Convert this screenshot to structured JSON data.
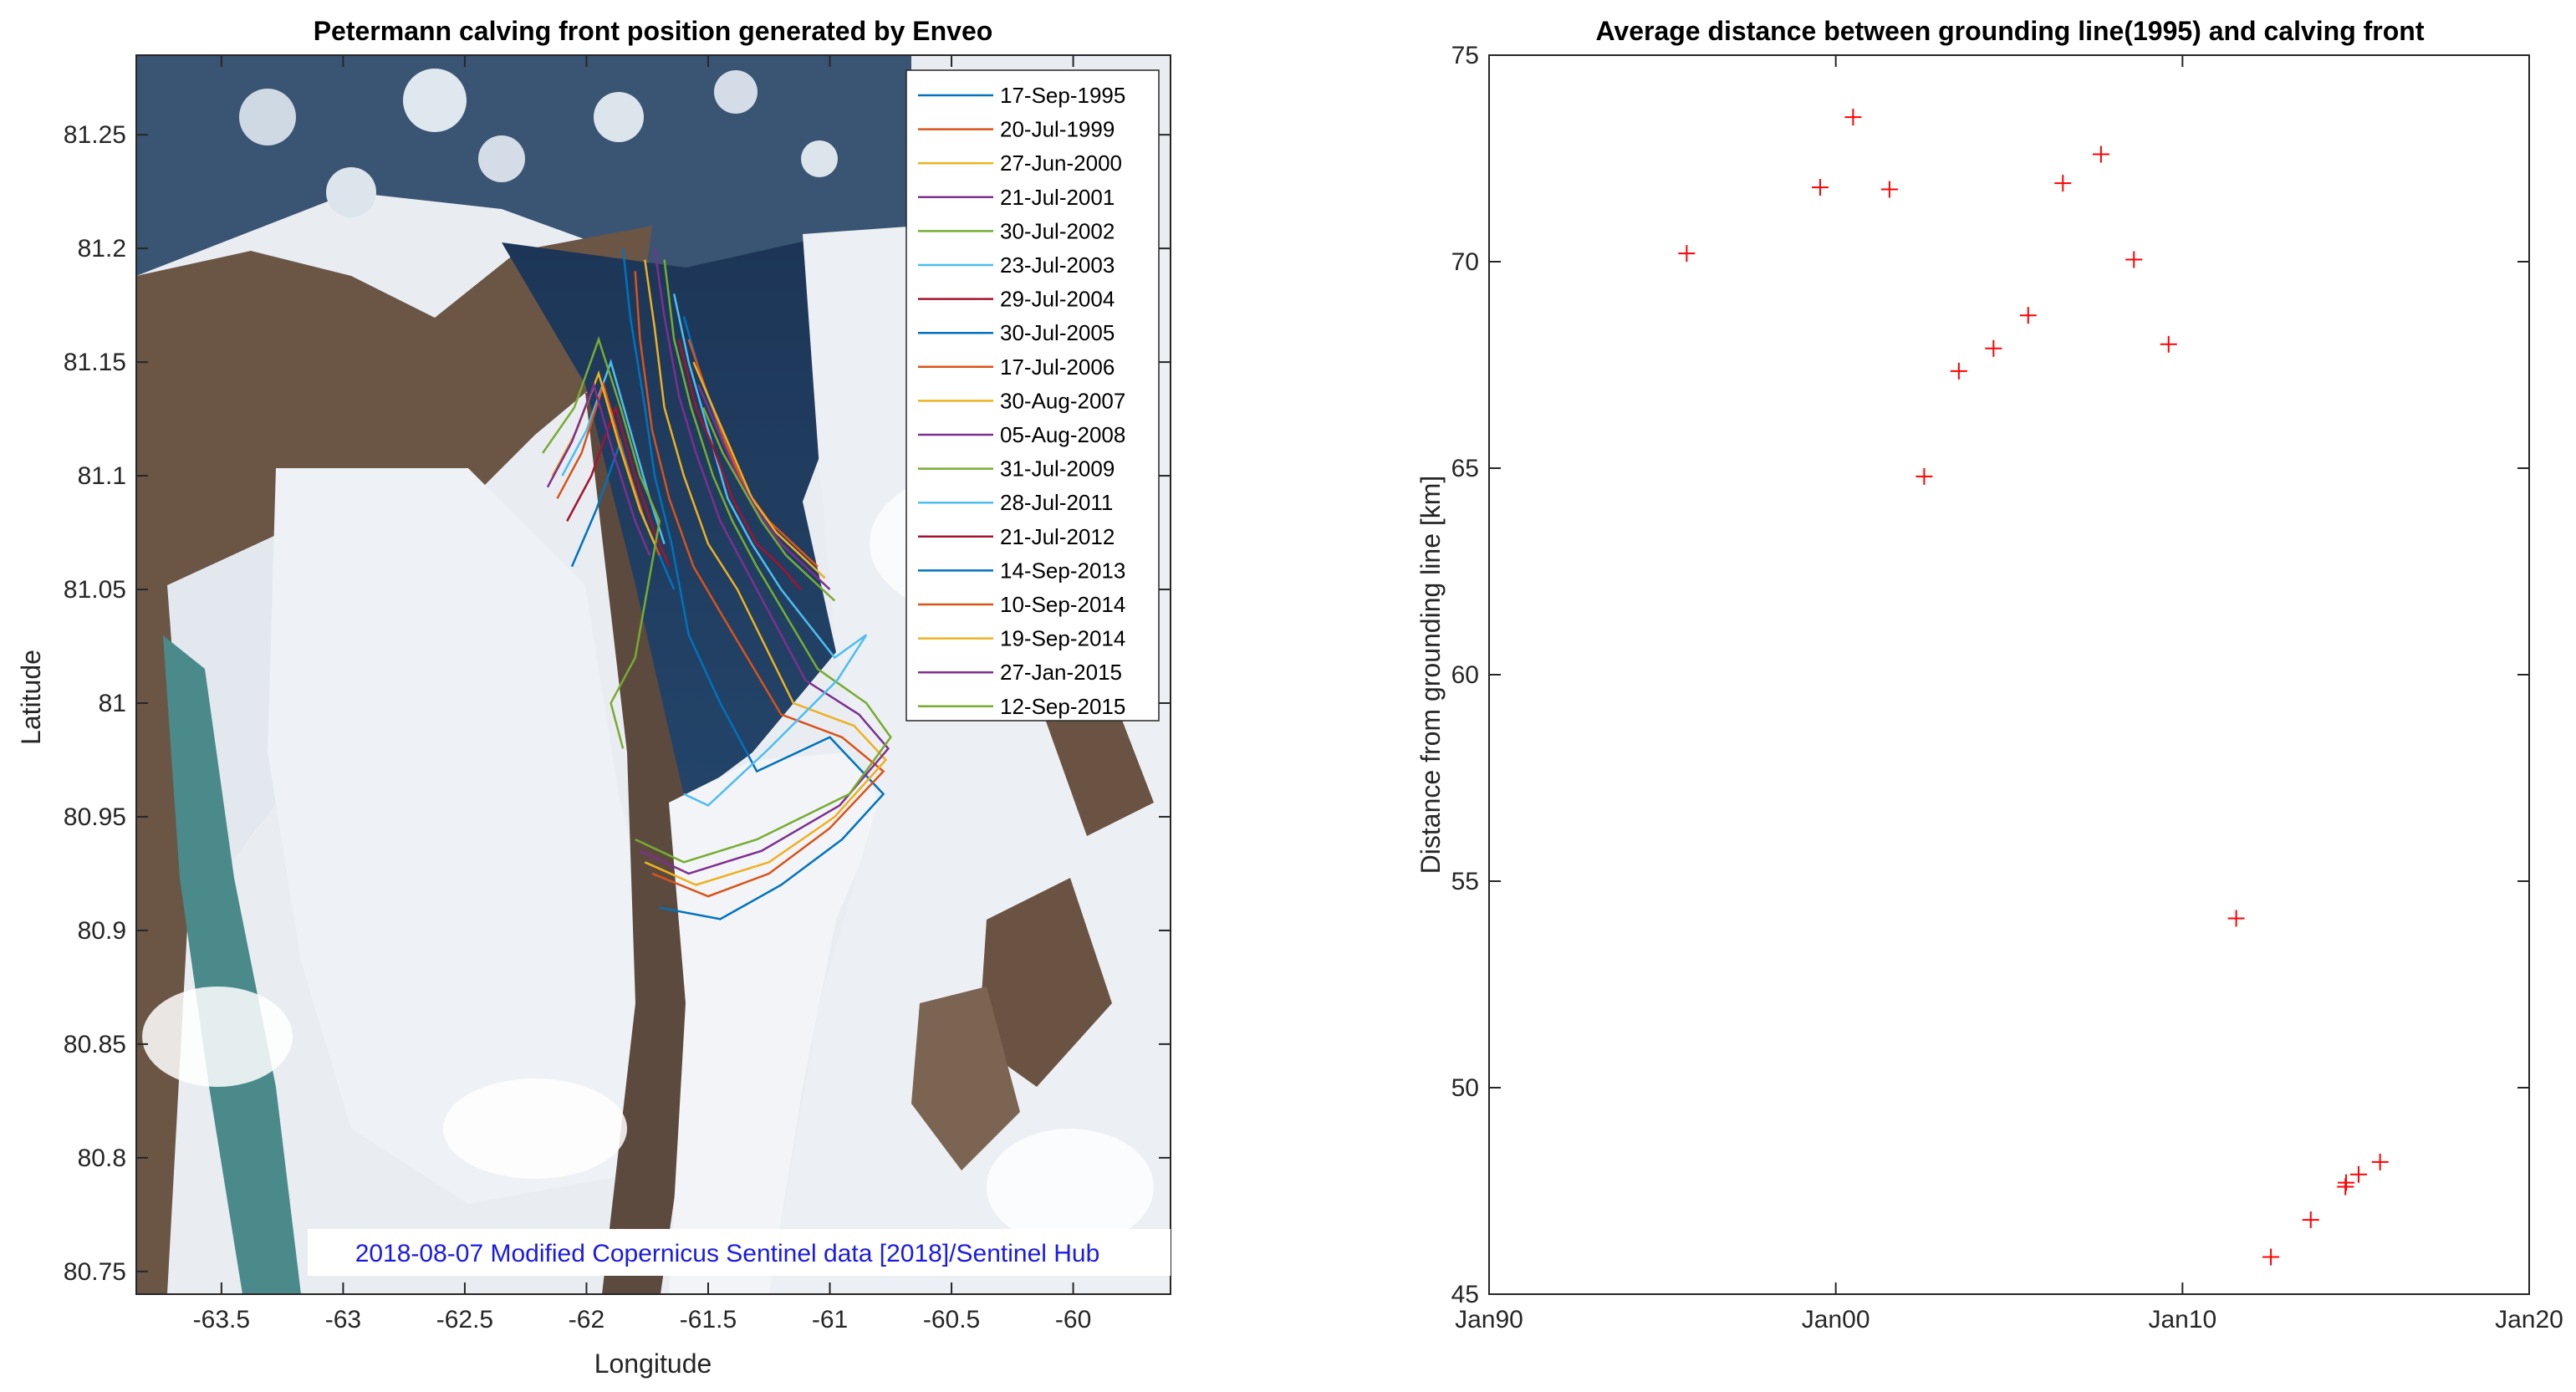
{
  "chart_data": [
    {
      "type": "line",
      "title": "Petermann calving front position generated by Enveo",
      "xlabel": "Longitude",
      "ylabel": "Latitude",
      "xlim": [
        -63.85,
        -59.6
      ],
      "ylim": [
        80.74,
        81.285
      ],
      "xticks": [
        -63.5,
        -63,
        -62.5,
        -62,
        -61.5,
        -61,
        -60.5,
        -60
      ],
      "xtick_labels": [
        "-63.5",
        "-63",
        "-62.5",
        "-62",
        "-61.5",
        "-61",
        "-60.5",
        "-60"
      ],
      "yticks": [
        80.75,
        80.8,
        80.85,
        80.9,
        80.95,
        81,
        81.05,
        81.1,
        81.15,
        81.2,
        81.25
      ],
      "ytick_labels": [
        "80.75",
        "80.8",
        "80.85",
        "80.9",
        "80.95",
        "81",
        "81.05",
        "81.1",
        "81.15",
        "81.2",
        "81.25"
      ],
      "legend_position": "top-right",
      "background": "satellite image",
      "credit": "2018-08-07 Modified Copernicus Sentinel data [2018]/Sentinel Hub",
      "credit_color": "#1a1ae6",
      "series": [
        {
          "name": "17-Sep-1995",
          "color": "#0072bd",
          "points": [
            [
              -61.85,
              81.2
            ],
            [
              -61.82,
              81.17
            ],
            [
              -61.76,
              81.13
            ],
            [
              -61.72,
              81.1
            ],
            [
              -61.65,
              81.07
            ],
            [
              -61.58,
              81.03
            ],
            [
              -61.45,
              81.0
            ],
            [
              -61.3,
              80.97
            ],
            [
              -61.0,
              80.985
            ],
            [
              -60.78,
              80.96
            ],
            [
              -60.95,
              80.94
            ],
            [
              -61.2,
              80.92
            ],
            [
              -61.45,
              80.905
            ],
            [
              -61.7,
              80.91
            ]
          ]
        },
        {
          "name": "20-Jul-1999",
          "color": "#d95319",
          "points": [
            [
              -61.8,
              81.19
            ],
            [
              -61.78,
              81.16
            ],
            [
              -61.73,
              81.12
            ],
            [
              -61.66,
              81.09
            ],
            [
              -61.56,
              81.06
            ],
            [
              -61.45,
              81.04
            ],
            [
              -61.2,
              80.995
            ],
            [
              -60.95,
              80.985
            ],
            [
              -60.78,
              80.97
            ],
            [
              -61.0,
              80.945
            ],
            [
              -61.25,
              80.925
            ],
            [
              -61.5,
              80.915
            ],
            [
              -61.73,
              80.925
            ]
          ]
        },
        {
          "name": "27-Jun-2000",
          "color": "#edb120",
          "points": [
            [
              -61.76,
              81.195
            ],
            [
              -61.72,
              81.165
            ],
            [
              -61.68,
              81.13
            ],
            [
              -61.6,
              81.1
            ],
            [
              -61.5,
              81.07
            ],
            [
              -61.38,
              81.05
            ],
            [
              -61.15,
              81.0
            ],
            [
              -60.9,
              80.99
            ],
            [
              -60.77,
              80.975
            ],
            [
              -60.98,
              80.95
            ],
            [
              -61.25,
              80.93
            ],
            [
              -61.55,
              80.92
            ],
            [
              -61.76,
              80.93
            ]
          ]
        },
        {
          "name": "21-Jul-2001",
          "color": "#7e2f8e",
          "points": [
            [
              -61.72,
              81.2
            ],
            [
              -61.68,
              81.17
            ],
            [
              -61.62,
              81.135
            ],
            [
              -61.55,
              81.11
            ],
            [
              -61.45,
              81.08
            ],
            [
              -61.35,
              81.06
            ],
            [
              -61.1,
              81.01
            ],
            [
              -60.88,
              80.995
            ],
            [
              -60.76,
              80.98
            ],
            [
              -60.96,
              80.955
            ],
            [
              -61.28,
              80.935
            ],
            [
              -61.58,
              80.925
            ],
            [
              -61.78,
              80.935
            ]
          ]
        },
        {
          "name": "30-Jul-2002",
          "color": "#77ac30",
          "points": [
            [
              -61.68,
              81.195
            ],
            [
              -61.64,
              81.16
            ],
            [
              -61.57,
              81.13
            ],
            [
              -61.48,
              81.1
            ],
            [
              -61.4,
              81.08
            ],
            [
              -61.3,
              81.06
            ],
            [
              -61.05,
              81.015
            ],
            [
              -60.85,
              81.0
            ],
            [
              -60.75,
              80.985
            ],
            [
              -60.92,
              80.96
            ],
            [
              -61.3,
              80.94
            ],
            [
              -61.6,
              80.93
            ],
            [
              -61.8,
              80.94
            ]
          ]
        },
        {
          "name": "23-Jul-2003",
          "color": "#4dbeee",
          "points": [
            [
              -61.64,
              81.18
            ],
            [
              -61.58,
              81.15
            ],
            [
              -61.5,
              81.12
            ],
            [
              -61.42,
              81.09
            ],
            [
              -61.32,
              81.07
            ],
            [
              -61.2,
              81.05
            ],
            [
              -60.98,
              81.02
            ],
            [
              -60.85,
              81.03
            ],
            [
              -60.97,
              81.01
            ],
            [
              -61.25,
              80.98
            ],
            [
              -61.5,
              80.955
            ],
            [
              -61.6,
              80.96
            ]
          ]
        },
        {
          "name": "29-Jul-2004",
          "color": "#a2142f",
          "points": [
            [
              -61.62,
              81.16
            ],
            [
              -61.55,
              81.13
            ],
            [
              -61.47,
              81.11
            ],
            [
              -61.4,
              81.09
            ],
            [
              -61.3,
              81.07
            ],
            [
              -61.2,
              81.06
            ],
            [
              -61.12,
              81.05
            ]
          ]
        },
        {
          "name": "30-Jul-2005",
          "color": "#0072bd",
          "points": [
            [
              -61.6,
              81.17
            ],
            [
              -61.52,
              81.14
            ],
            [
              -61.45,
              81.12
            ],
            [
              -61.38,
              81.1
            ],
            [
              -61.28,
              81.08
            ],
            [
              -61.18,
              81.065
            ],
            [
              -61.08,
              81.055
            ]
          ]
        },
        {
          "name": "17-Jul-2006",
          "color": "#d95319",
          "points": [
            [
              -61.58,
              81.16
            ],
            [
              -61.5,
              81.135
            ],
            [
              -61.43,
              81.115
            ],
            [
              -61.35,
              81.095
            ],
            [
              -61.25,
              81.08
            ],
            [
              -61.15,
              81.07
            ],
            [
              -61.05,
              81.06
            ]
          ]
        },
        {
          "name": "30-Aug-2007",
          "color": "#edb120",
          "points": [
            [
              -61.56,
              81.15
            ],
            [
              -61.48,
              81.13
            ],
            [
              -61.4,
              81.11
            ],
            [
              -61.32,
              81.09
            ],
            [
              -61.22,
              81.075
            ],
            [
              -61.12,
              81.065
            ],
            [
              -61.02,
              81.055
            ]
          ]
        },
        {
          "name": "05-Aug-2008",
          "color": "#7e2f8e",
          "points": [
            [
              -61.54,
              81.14
            ],
            [
              -61.46,
              81.12
            ],
            [
              -61.38,
              81.1
            ],
            [
              -61.3,
              81.085
            ],
            [
              -61.2,
              81.07
            ],
            [
              -61.1,
              81.06
            ],
            [
              -61.0,
              81.05
            ]
          ]
        },
        {
          "name": "31-Jul-2009",
          "color": "#77ac30",
          "points": [
            [
              -61.52,
              81.13
            ],
            [
              -61.44,
              81.11
            ],
            [
              -61.36,
              81.095
            ],
            [
              -61.28,
              81.08
            ],
            [
              -61.18,
              81.065
            ],
            [
              -61.08,
              81.055
            ],
            [
              -60.98,
              81.045
            ]
          ]
        },
        {
          "name": "28-Jul-2011",
          "color": "#4dbeee",
          "points": [
            [
              -62.1,
              81.1
            ],
            [
              -62.0,
              81.12
            ],
            [
              -61.9,
              81.15
            ],
            [
              -61.82,
              81.12
            ],
            [
              -61.74,
              81.09
            ],
            [
              -61.68,
              81.07
            ]
          ]
        },
        {
          "name": "21-Jul-2012",
          "color": "#a2142f",
          "points": [
            [
              -62.08,
              81.08
            ],
            [
              -61.98,
              81.1
            ],
            [
              -61.88,
              81.13
            ],
            [
              -61.8,
              81.1
            ],
            [
              -61.72,
              81.075
            ],
            [
              -61.66,
              81.06
            ]
          ]
        },
        {
          "name": "14-Sep-2013",
          "color": "#0072bd",
          "points": [
            [
              -62.06,
              81.06
            ],
            [
              -61.96,
              81.085
            ],
            [
              -61.86,
              81.115
            ],
            [
              -61.78,
              81.085
            ],
            [
              -61.7,
              81.065
            ],
            [
              -61.64,
              81.05
            ]
          ]
        },
        {
          "name": "10-Sep-2014",
          "color": "#d95319",
          "points": [
            [
              -62.12,
              81.09
            ],
            [
              -62.02,
              81.11
            ],
            [
              -61.93,
              81.14
            ],
            [
              -61.85,
              81.11
            ],
            [
              -61.76,
              81.08
            ],
            [
              -61.7,
              81.065
            ]
          ]
        },
        {
          "name": "19-Sep-2014",
          "color": "#edb120",
          "points": [
            [
              -62.14,
              81.1
            ],
            [
              -62.04,
              81.12
            ],
            [
              -61.95,
              81.145
            ],
            [
              -61.87,
              81.115
            ],
            [
              -61.78,
              81.085
            ],
            [
              -61.72,
              81.07
            ]
          ]
        },
        {
          "name": "27-Jan-2015",
          "color": "#7e2f8e",
          "points": [
            [
              -62.16,
              81.095
            ],
            [
              -62.06,
              81.115
            ],
            [
              -61.97,
              81.14
            ],
            [
              -61.89,
              81.11
            ],
            [
              -61.8,
              81.08
            ],
            [
              -61.74,
              81.065
            ]
          ]
        },
        {
          "name": "12-Sep-2015",
          "color": "#77ac30",
          "points": [
            [
              -62.18,
              81.11
            ],
            [
              -62.05,
              81.13
            ],
            [
              -61.95,
              81.16
            ],
            [
              -61.86,
              81.13
            ],
            [
              -61.78,
              81.1
            ],
            [
              -61.7,
              81.08
            ],
            [
              -61.8,
              81.02
            ],
            [
              -61.9,
              81.0
            ],
            [
              -61.85,
              80.98
            ]
          ]
        }
      ]
    },
    {
      "type": "scatter",
      "title": "Average distance between grounding line(1995) and calving front",
      "xlabel": "",
      "ylabel": "Distance from grounding line [km]",
      "xlim": [
        1990,
        2020
      ],
      "ylim": [
        45,
        75
      ],
      "xticks": [
        1990,
        2000,
        2010,
        2020
      ],
      "xtick_labels": [
        "Jan90",
        "Jan00",
        "Jan10",
        "Jan20"
      ],
      "yticks": [
        45,
        50,
        55,
        60,
        65,
        70,
        75
      ],
      "ytick_labels": [
        "45",
        "50",
        "55",
        "60",
        "65",
        "70",
        "75"
      ],
      "marker": "+",
      "color": "#ff0000",
      "series": [
        {
          "x": [
            1995.7,
            1999.55,
            2000.5,
            2001.55,
            2002.55,
            2003.55,
            2004.55,
            2005.55,
            2006.55,
            2007.65,
            2008.6,
            2009.6,
            2011.55,
            2012.55,
            2013.7,
            2014.7,
            2014.72,
            2015.08,
            2015.7
          ],
          "y": [
            70.2,
            71.8,
            73.5,
            71.75,
            64.8,
            67.35,
            67.9,
            68.7,
            71.9,
            72.6,
            70.05,
            68.0,
            54.1,
            45.9,
            46.8,
            47.6,
            47.7,
            47.9,
            48.2
          ]
        }
      ]
    }
  ]
}
